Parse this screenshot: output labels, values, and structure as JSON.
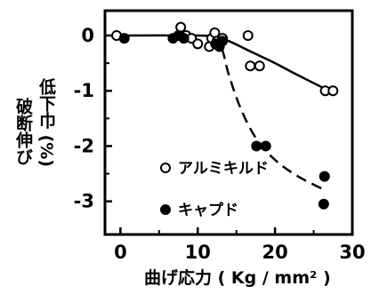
{
  "chart_data": {
    "type": "scatter",
    "ylabel_line1": "破断伸び",
    "ylabel_line2": "低下巾 (%)",
    "xlabel": "曲げ応力 ( Kg / mm² )",
    "xlim": [
      -2,
      30
    ],
    "ylim": [
      -3.6,
      0.45
    ],
    "x_ticks": [
      0,
      10,
      20,
      30
    ],
    "x_tick_labels": [
      "0",
      "10",
      "20",
      "30"
    ],
    "y_ticks": [
      0,
      -1,
      -2,
      -3
    ],
    "y_tick_labels": [
      "0",
      "-1",
      "-2",
      "-3"
    ],
    "grid": false,
    "legend_position": "lower-left inside",
    "series": [
      {
        "name": "アルミキルド",
        "marker": "open-circle",
        "curve": "solid",
        "points": [
          [
            -0.5,
            0.0
          ],
          [
            7.8,
            0.15
          ],
          [
            8.5,
            0.0
          ],
          [
            9.2,
            -0.05
          ],
          [
            10,
            -0.15
          ],
          [
            11.5,
            -0.2
          ],
          [
            11.8,
            -0.05
          ],
          [
            12.2,
            0.05
          ],
          [
            12.5,
            -0.1
          ],
          [
            13.2,
            -0.05
          ],
          [
            16.5,
            0.0
          ],
          [
            16.8,
            -0.55
          ],
          [
            18,
            -0.55
          ],
          [
            26.5,
            -1.0
          ],
          [
            27.5,
            -1.0
          ]
        ],
        "trend": [
          [
            0,
            0
          ],
          [
            10,
            0
          ],
          [
            12,
            -0.02
          ],
          [
            14,
            -0.1
          ],
          [
            17,
            -0.3
          ],
          [
            20,
            -0.5
          ],
          [
            23,
            -0.72
          ],
          [
            27,
            -1.0
          ]
        ]
      },
      {
        "name": "キャプド",
        "marker": "filled-circle",
        "curve": "dashed",
        "points": [
          [
            0.5,
            -0.05
          ],
          [
            6.8,
            -0.05
          ],
          [
            7.5,
            0.0
          ],
          [
            8.2,
            -0.05
          ],
          [
            12.3,
            -0.15
          ],
          [
            12.8,
            -0.2
          ],
          [
            13.2,
            -0.1
          ],
          [
            17.6,
            -2.0
          ],
          [
            18.8,
            -2.0
          ],
          [
            26.4,
            -2.55
          ],
          [
            26.3,
            -3.05
          ]
        ],
        "trend": [
          [
            11.5,
            -0.05
          ],
          [
            13,
            -0.2
          ],
          [
            14,
            -0.7
          ],
          [
            15.5,
            -1.3
          ],
          [
            17.5,
            -1.85
          ],
          [
            20,
            -2.25
          ],
          [
            23,
            -2.55
          ],
          [
            26.5,
            -2.8
          ]
        ]
      }
    ]
  }
}
